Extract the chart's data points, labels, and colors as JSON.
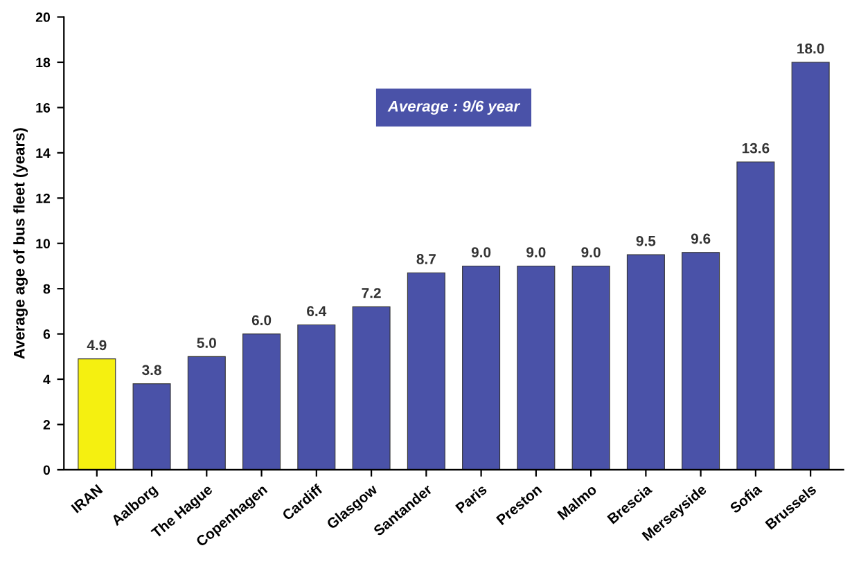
{
  "chart_data": {
    "type": "bar",
    "ylabel": "Average age of bus fleet (years)",
    "categories": [
      "IRAN",
      "Aalborg",
      "The Hague",
      "Copenhagen",
      "Cardiff",
      "Glasgow",
      "Santander",
      "Paris",
      "Preston",
      "Malmo",
      "Brescia",
      "Merseyside",
      "Sofia",
      "Brussels"
    ],
    "values": [
      4.9,
      3.8,
      5.0,
      6.0,
      6.4,
      7.2,
      8.7,
      9.0,
      9.0,
      9.0,
      9.5,
      9.6,
      13.6,
      18.0
    ],
    "colors": [
      "#f5f010",
      "#4a52a8",
      "#4a52a8",
      "#4a52a8",
      "#4a52a8",
      "#4a52a8",
      "#4a52a8",
      "#4a52a8",
      "#4a52a8",
      "#4a52a8",
      "#4a52a8",
      "#4a52a8",
      "#4a52a8",
      "#4a52a8"
    ],
    "ylim": [
      0,
      20
    ],
    "yticks": [
      0,
      2,
      4,
      6,
      8,
      10,
      12,
      14,
      16,
      18,
      20
    ],
    "value_labels": [
      "4.9",
      "3.8",
      "5.0",
      "6.0",
      "6.4",
      "7.2",
      "8.7",
      "9.0",
      "9.0",
      "9.0",
      "9.5",
      "9.6",
      "13.6",
      "18.0"
    ],
    "grid": false,
    "legend": false,
    "annotations": [
      "Average : 9/6 year"
    ]
  }
}
